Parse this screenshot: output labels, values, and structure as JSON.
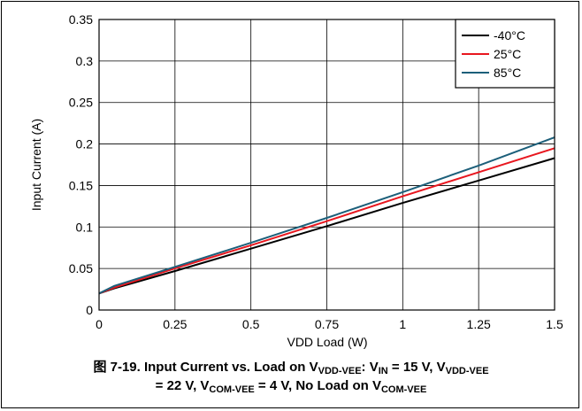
{
  "chart_data": {
    "type": "line",
    "title": "",
    "xlabel": "VDD Load (W)",
    "ylabel": "Input Current (A)",
    "xlim": [
      0,
      1.5
    ],
    "ylim": [
      0,
      0.35
    ],
    "x_ticks": [
      "0",
      "0.25",
      "0.5",
      "0.75",
      "1",
      "1.25",
      "1.5"
    ],
    "y_ticks": [
      "0",
      "0.05",
      "0.1",
      "0.15",
      "0.2",
      "0.25",
      "0.3",
      "0.35"
    ],
    "grid": true,
    "legend_position": "top-right",
    "x": [
      0,
      0.05,
      0.25,
      0.5,
      0.75,
      1.0,
      1.25,
      1.5
    ],
    "series": [
      {
        "name": "-40°C",
        "color": "#000000",
        "values": [
          0.02,
          0.026,
          0.047,
          0.074,
          0.101,
          0.129,
          0.156,
          0.183
        ]
      },
      {
        "name": "25°C",
        "color": "#e8171f",
        "values": [
          0.02,
          0.027,
          0.05,
          0.078,
          0.107,
          0.137,
          0.166,
          0.195
        ]
      },
      {
        "name": "85°C",
        "color": "#1c5f7a",
        "values": [
          0.02,
          0.029,
          0.052,
          0.081,
          0.111,
          0.142,
          0.174,
          0.208
        ]
      }
    ]
  },
  "caption": {
    "fig_num": "图 7-19.",
    "l1_a": " Input Current vs. Load on V",
    "l1_b": "VDD-VEE",
    "l1_c": ": V",
    "l1_d": "IN",
    "l1_e": " = 15 V, V",
    "l1_f": "VDD-VEE",
    "l2_a": "= 22 V, V",
    "l2_b": "COM-VEE",
    "l2_c": " = 4 V, No Load on V",
    "l2_d": "COM-VEE"
  }
}
